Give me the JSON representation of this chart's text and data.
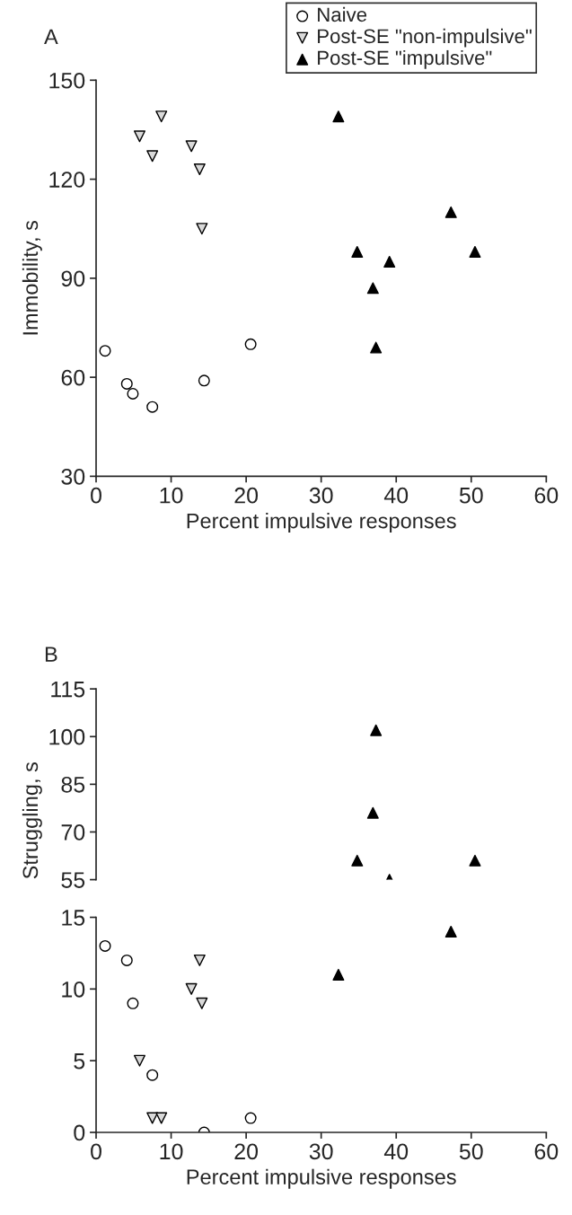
{
  "chart_data": [
    {
      "type": "scatter",
      "title": "A",
      "xlabel": "Percent impulsive responses",
      "ylabel": "Immobility, s",
      "xlim": [
        0,
        60
      ],
      "xticks": [
        0,
        10,
        20,
        30,
        40,
        50,
        60
      ],
      "ylim": [
        30,
        150
      ],
      "yticks": [
        30,
        60,
        90,
        120,
        150
      ],
      "legend": "top right",
      "grid": false,
      "series": [
        {
          "name": "Naive",
          "marker": "circle",
          "color": "#ffffff",
          "x": [
            1.2,
            4.1,
            4.9,
            7.5,
            14.4,
            20.6
          ],
          "values": [
            68,
            58,
            55,
            51,
            59,
            70
          ]
        },
        {
          "name": "Post-SE \"non-impulsive\"",
          "marker": "triangle_down",
          "color": "#d9d9d9",
          "x": [
            8.7,
            5.8,
            7.5,
            12.7,
            13.8,
            14.1
          ],
          "values": [
            139,
            133,
            127,
            130,
            123,
            105
          ]
        },
        {
          "name": "Post-SE \"impulsive\"",
          "marker": "triangle",
          "color": "#000000",
          "x": [
            32.3,
            34.8,
            39.1,
            36.9,
            37.3,
            47.3,
            50.5
          ],
          "values": [
            139,
            98,
            95,
            87,
            69,
            110,
            98
          ]
        }
      ]
    },
    {
      "type": "scatter",
      "title": "B",
      "xlim": [
        0,
        60
      ],
      "ylim": [
        55,
        115
      ],
      "yticks": [
        55,
        70,
        85,
        100,
        115
      ],
      "tick_labels": "y",
      "grid": false,
      "series": [
        {
          "marker": "triangle",
          "color": "#000000",
          "x": [
            37.3,
            36.9,
            34.8,
            50.5,
            39.1
          ],
          "values": [
            102,
            76,
            61,
            61,
            55
          ]
        }
      ]
    },
    {
      "type": "scatter",
      "xlabel": "Percent impulsive responses",
      "ylabel": "Struggling, s",
      "xlim": [
        0,
        60
      ],
      "xticks": [
        0,
        10,
        20,
        30,
        40,
        50,
        60
      ],
      "ylim": [
        0,
        15
      ],
      "yticks": [
        0,
        5,
        10,
        15
      ],
      "grid": false,
      "series": [
        {
          "marker": "circle",
          "color": "#ffffff",
          "x": [
            1.2,
            4.1,
            4.9,
            7.5,
            14.4,
            20.6
          ],
          "values": [
            13,
            12,
            9,
            4,
            0,
            1
          ]
        },
        {
          "marker": "triangle_down",
          "color": "#d9d9d9",
          "x": [
            5.8,
            7.5,
            8.7,
            12.7,
            13.8,
            14.1
          ],
          "values": [
            5,
            1,
            1,
            10,
            12,
            9
          ]
        },
        {
          "marker": "triangle",
          "color": "#000000",
          "x": [
            32.3,
            47.3
          ],
          "values": [
            11,
            14
          ]
        }
      ]
    }
  ]
}
